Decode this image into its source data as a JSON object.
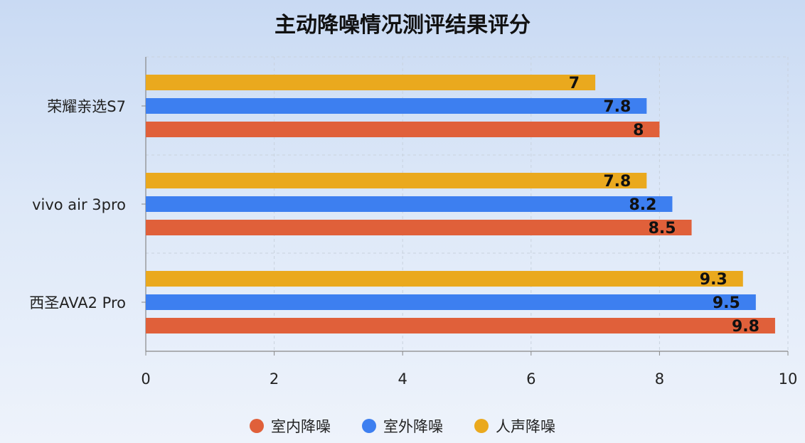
{
  "chart_data": {
    "type": "bar",
    "orientation": "horizontal",
    "title": "主动降噪情况测评结果评分",
    "categories": [
      "荣耀亲选S7",
      "vivo air 3pro",
      "西圣AVA2 Pro"
    ],
    "series": [
      {
        "name": "人声降噪",
        "color": "#eaa91e",
        "values": [
          7,
          7.8,
          9.3
        ]
      },
      {
        "name": "室外降噪",
        "color": "#3d7ff0",
        "values": [
          7.8,
          8.2,
          9.5
        ]
      },
      {
        "name": "室内降噪",
        "color": "#e0603a",
        "values": [
          8,
          8.5,
          9.8
        ]
      }
    ],
    "legend_order": [
      "室内降噪",
      "室外降噪",
      "人声降噪"
    ],
    "xlim": [
      0,
      10
    ],
    "xticks": [
      "0",
      "2",
      "4",
      "6",
      "8",
      "10"
    ],
    "xtick_values": [
      0,
      2,
      4,
      6,
      8,
      10
    ],
    "grid": true,
    "legend_position": "bottom"
  }
}
